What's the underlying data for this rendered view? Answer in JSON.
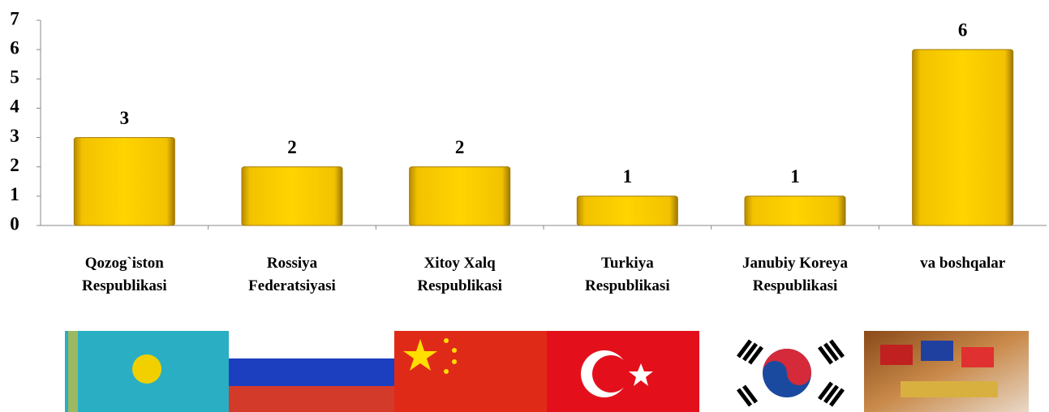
{
  "chart_data": {
    "type": "bar",
    "categories": [
      "Qozog`iston Respublikasi",
      "Rossiya Federatsiyasi",
      "Xitoy Xalq Respublikasi",
      "Turkiya Respublikasi",
      "Janubiy Koreya Respublikasi",
      "va boshqalar"
    ],
    "values": [
      3,
      2,
      2,
      1,
      1,
      6
    ],
    "color": "#f5c800",
    "ylim": [
      0,
      7
    ],
    "yticks": [
      0,
      1,
      2,
      3,
      4,
      5,
      6,
      7
    ],
    "grid": false
  }
}
